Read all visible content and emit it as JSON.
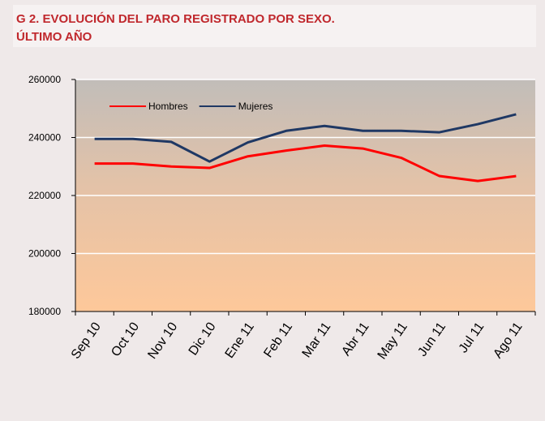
{
  "chart_data": {
    "type": "line",
    "title": "G 2. EVOLUCIÓN DEL PARO REGISTRADO POR  SEXO.",
    "subtitle": "ÚLTIMO AÑO",
    "categories": [
      "Sep 10",
      "Oct 10",
      "Nov 10",
      "Dic 10",
      "Ene 11",
      "Feb 11",
      "Mar 11",
      "Abr 11",
      "May 11",
      "Jun 11",
      "Jul 11",
      "Ago 11"
    ],
    "series": [
      {
        "name": "Hombres",
        "color": "#ff0000",
        "values": [
          231000,
          231000,
          230000,
          229500,
          233500,
          235500,
          237200,
          236200,
          233000,
          226700,
          225000,
          226700
        ]
      },
      {
        "name": "Mujeres",
        "color": "#1f3864",
        "values": [
          239500,
          239500,
          238500,
          231700,
          238300,
          242300,
          244000,
          242300,
          242300,
          241800,
          244600,
          248000
        ]
      }
    ],
    "ylim": [
      180000,
      260000
    ],
    "yticks": [
      180000,
      200000,
      220000,
      240000,
      260000
    ],
    "grid": true,
    "legend": "upper left"
  }
}
